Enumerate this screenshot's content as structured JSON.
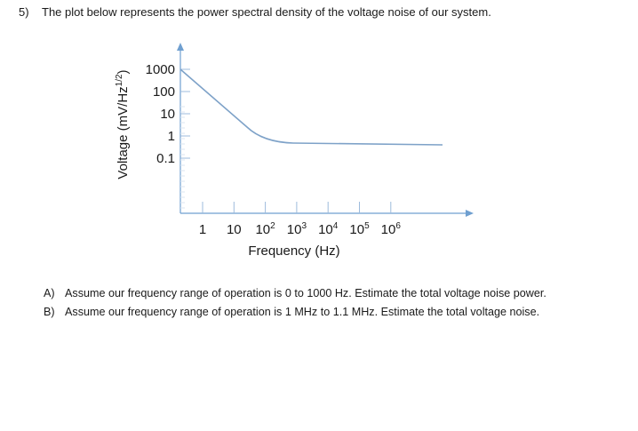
{
  "question": {
    "number": "5)",
    "text": "The plot below represents the power spectral density of the voltage noise of our system."
  },
  "chart_data": {
    "type": "line",
    "ylabel": "Voltage (mV/Hz",
    "ylabel_superscript": "1/2",
    "ylabel_close": ")",
    "xlabel": "Frequency (Hz)",
    "y_ticks": [
      "1000",
      "100",
      "10",
      "1",
      "0.1"
    ],
    "x_ticks": [
      {
        "base": "1",
        "exp": ""
      },
      {
        "base": "10",
        "exp": ""
      },
      {
        "base": "10",
        "exp": "2"
      },
      {
        "base": "10",
        "exp": "3"
      },
      {
        "base": "10",
        "exp": "4"
      },
      {
        "base": "10",
        "exp": "5"
      },
      {
        "base": "10",
        "exp": "6"
      }
    ],
    "series": [
      {
        "points": [
          {
            "x": 1,
            "y": 1000
          },
          {
            "x": 10,
            "y": 100
          },
          {
            "x": 100,
            "y": 10
          },
          {
            "x": 1000,
            "y": 1
          },
          {
            "x": 10000,
            "y": 0.5
          },
          {
            "x": 100000,
            "y": 0.5
          },
          {
            "x": 1000000,
            "y": 0.5
          }
        ]
      }
    ],
    "colors": {
      "curve": "#7ea2c8",
      "axis": "#6f9fd0",
      "tick": "#9dbbdc"
    }
  },
  "parts": [
    {
      "letter": "A)",
      "text": "Assume our frequency range of operation is 0 to 1000 Hz.  Estimate the total voltage noise power."
    },
    {
      "letter": "B)",
      "text": "Assume our frequency range of operation is 1 MHz to 1.1 MHz.  Estimate the total voltage noise."
    }
  ]
}
